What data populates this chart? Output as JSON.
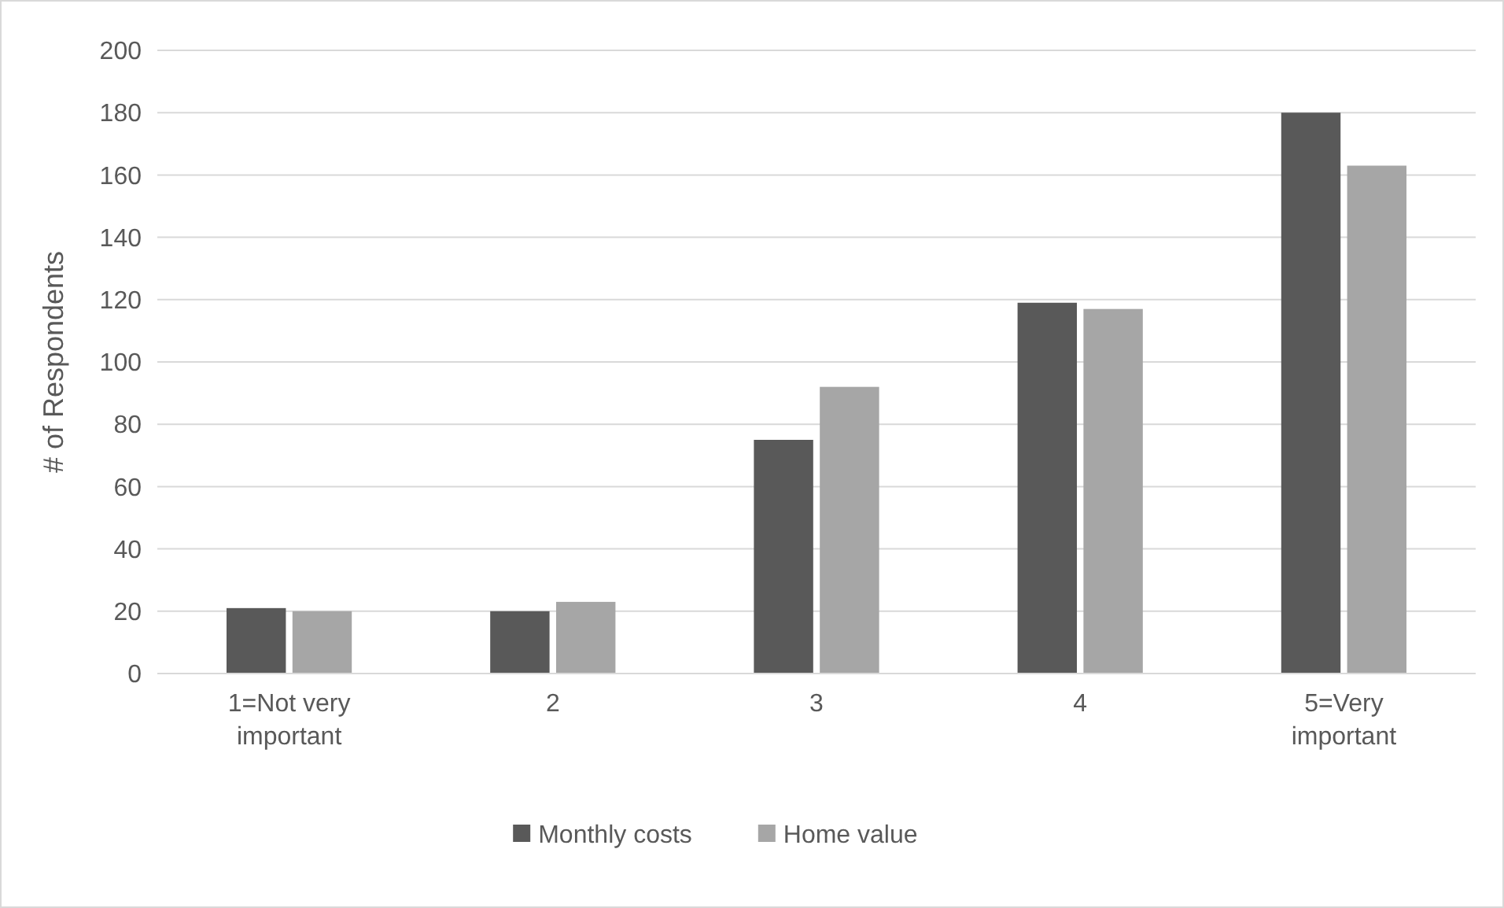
{
  "chart_data": {
    "type": "bar",
    "ylabel": "# of Respondents",
    "categories": [
      "1=Not very important",
      "2",
      "3",
      "4",
      "5=Very important"
    ],
    "series": [
      {
        "name": "Monthly costs",
        "color": "#595959",
        "values": [
          21,
          20,
          75,
          119,
          180
        ]
      },
      {
        "name": "Home value",
        "color": "#a6a6a6",
        "values": [
          20,
          23,
          92,
          117,
          163
        ]
      }
    ],
    "ylim": [
      0,
      200
    ],
    "yticks": [
      0,
      20,
      40,
      60,
      80,
      100,
      120,
      140,
      160,
      180,
      200
    ],
    "grid": "y",
    "legend": "bottom"
  }
}
